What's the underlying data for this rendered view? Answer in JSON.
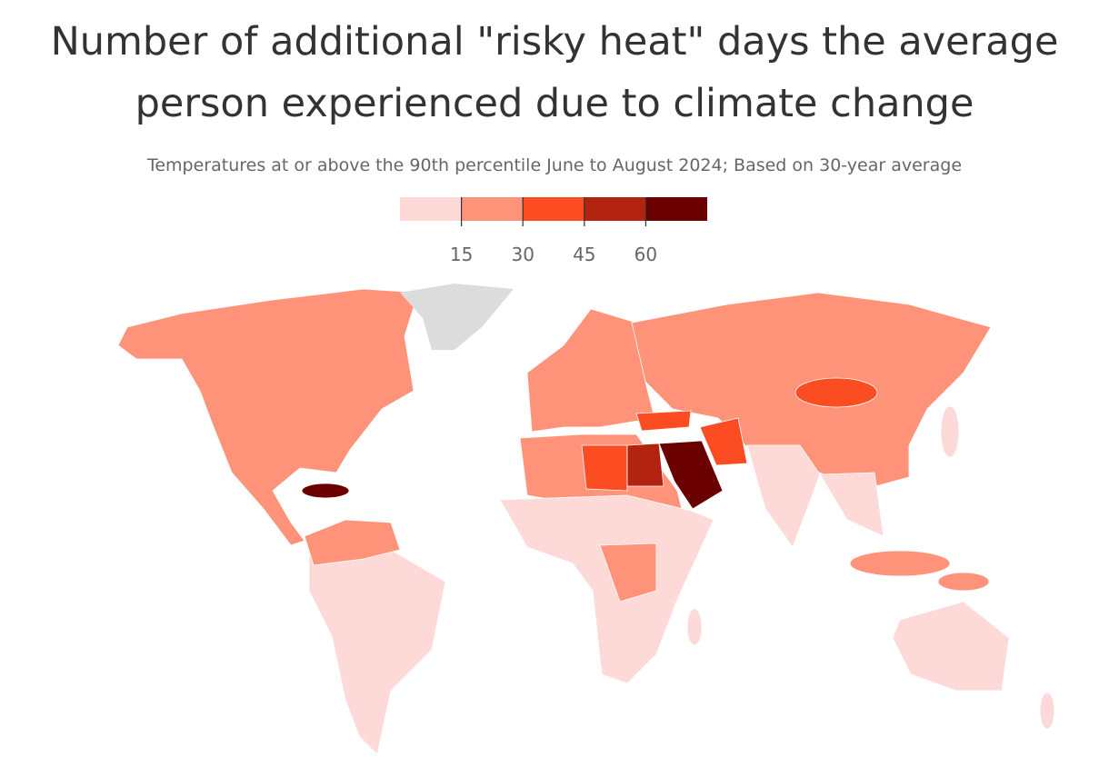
{
  "chart_data": {
    "type": "choropleth",
    "title": [
      "Number of additional \"risky heat\" days the average",
      "person experienced due to climate change"
    ],
    "subtitle": "Temperatures at or above the 90th percentile June to August 2024; Based on 30-year average",
    "legend": {
      "colors": [
        "#fdd9d7",
        "#fe937a",
        "#fb4c22",
        "#b32312",
        "#6b0000"
      ],
      "ticks": [
        15,
        30,
        45,
        60
      ]
    }
  }
}
